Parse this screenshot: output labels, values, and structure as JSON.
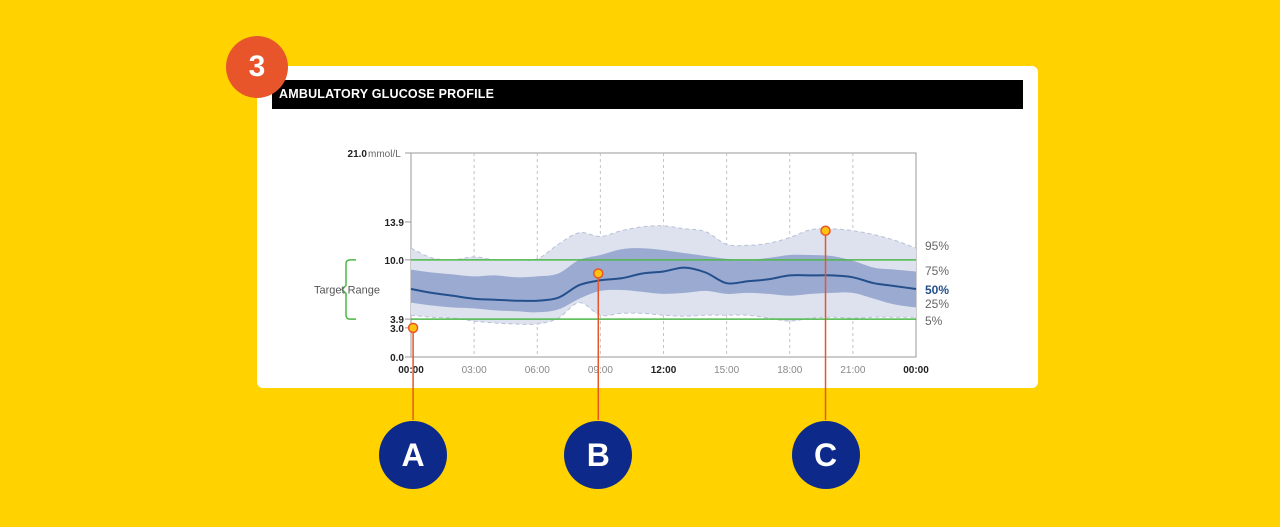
{
  "step_number": "3",
  "card": {
    "title": "AMBULATORY GLUCOSE PROFILE"
  },
  "chart_data": {
    "type": "area",
    "title": "AMBULATORY GLUCOSE PROFILE",
    "y_unit": "mmol/L",
    "ylim": [
      0,
      21.0
    ],
    "y_ticks": [
      {
        "value": 21.0,
        "label": "21.0"
      },
      {
        "value": 13.9,
        "label": "13.9"
      },
      {
        "value": 10.0,
        "label": "10.0"
      },
      {
        "value": 3.9,
        "label": "3.9"
      },
      {
        "value": 3.0,
        "label": "3.0"
      },
      {
        "value": 0.0,
        "label": "0.0"
      }
    ],
    "x_ticks": [
      "00:00",
      "03:00",
      "06:00",
      "09:00",
      "12:00",
      "15:00",
      "18:00",
      "21:00",
      "00:00"
    ],
    "x_ticks_bold": [
      true,
      false,
      false,
      false,
      true,
      false,
      false,
      false,
      true
    ],
    "target_range": {
      "label": "Target Range",
      "low": 3.9,
      "high": 10.0,
      "color": "#4CB848"
    },
    "band_labels": [
      "95%",
      "75%",
      "50%",
      "25%",
      "5%"
    ],
    "x_hours": [
      0,
      1,
      2,
      3,
      4,
      5,
      6,
      7,
      8,
      9,
      10,
      11,
      12,
      13,
      14,
      15,
      16,
      17,
      18,
      19,
      20,
      21,
      22,
      23,
      24
    ],
    "series": [
      {
        "name": "95%",
        "values": [
          11.2,
          10.2,
          10.0,
          10.3,
          10.0,
          10.0,
          10.1,
          11.6,
          12.8,
          12.4,
          13.0,
          13.4,
          13.5,
          13.2,
          12.9,
          11.6,
          11.5,
          11.7,
          12.3,
          13.1,
          13.2,
          13.0,
          12.6,
          12.0,
          11.2
        ]
      },
      {
        "name": "75%",
        "values": [
          9.0,
          8.7,
          8.5,
          8.3,
          8.4,
          8.2,
          8.3,
          8.6,
          10.0,
          10.5,
          11.1,
          11.2,
          11.0,
          10.7,
          10.4,
          10.1,
          10.0,
          10.2,
          10.5,
          10.5,
          10.4,
          9.9,
          9.2,
          9.0,
          8.8
        ]
      },
      {
        "name": "50%",
        "values": [
          7.0,
          6.6,
          6.3,
          6.0,
          5.9,
          5.8,
          5.8,
          6.1,
          7.4,
          7.9,
          8.1,
          8.6,
          8.8,
          9.2,
          8.7,
          7.6,
          7.8,
          8.0,
          8.4,
          8.4,
          8.4,
          8.2,
          7.6,
          7.3,
          7.0
        ]
      },
      {
        "name": "25%",
        "values": [
          5.6,
          5.3,
          5.1,
          5.0,
          4.8,
          4.7,
          4.6,
          4.9,
          6.0,
          6.8,
          6.9,
          6.7,
          6.5,
          6.6,
          6.8,
          6.5,
          6.6,
          6.5,
          6.3,
          6.5,
          6.6,
          6.6,
          6.0,
          5.4,
          5.1
        ]
      },
      {
        "name": "5%",
        "values": [
          4.3,
          4.1,
          4.0,
          3.7,
          3.5,
          3.4,
          3.4,
          4.0,
          5.6,
          4.3,
          4.5,
          4.5,
          4.3,
          4.2,
          4.3,
          4.3,
          4.3,
          4.0,
          3.7,
          4.0,
          4.1,
          4.0,
          4.1,
          4.1,
          4.1
        ]
      }
    ],
    "colors": {
      "band_outer": "#DDE2EE",
      "band_inner": "#9BAAD0",
      "median": "#23508C"
    },
    "grid": true
  },
  "callouts": [
    {
      "label": "A",
      "hour": 0.1,
      "value": 3.0
    },
    {
      "label": "B",
      "hour": 8.9,
      "value": 8.6
    },
    {
      "label": "C",
      "hour": 19.7,
      "value": 13.0
    }
  ],
  "colors": {
    "background": "#FFD200",
    "step_badge": "#E8552A",
    "callout_circle": "#0D2A8A",
    "callout_line": "#E8552A",
    "marker_fill": "#FFC20E"
  }
}
